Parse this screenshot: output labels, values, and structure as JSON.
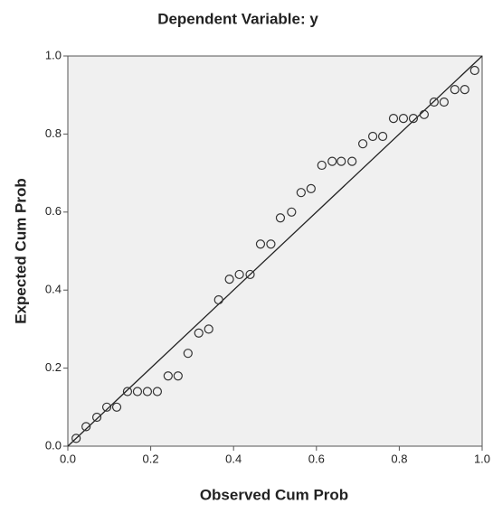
{
  "chart_data": {
    "type": "scatter",
    "title": "Dependent Variable: y",
    "x_label": "Observed Cum Prob",
    "y_label": "Expected Cum Prob",
    "x": [
      0.02,
      0.044,
      0.07,
      0.094,
      0.118,
      0.144,
      0.168,
      0.192,
      0.216,
      0.242,
      0.266,
      0.29,
      0.316,
      0.34,
      0.364,
      0.39,
      0.414,
      0.44,
      0.465,
      0.49,
      0.513,
      0.54,
      0.563,
      0.587,
      0.613,
      0.638,
      0.66,
      0.686,
      0.712,
      0.736,
      0.76,
      0.786,
      0.81,
      0.834,
      0.86,
      0.884,
      0.908,
      0.934,
      0.958,
      0.982
    ],
    "values": [
      0.02,
      0.05,
      0.074,
      0.1,
      0.1,
      0.14,
      0.14,
      0.14,
      0.14,
      0.18,
      0.18,
      0.238,
      0.29,
      0.3,
      0.375,
      0.428,
      0.44,
      0.44,
      0.518,
      0.518,
      0.585,
      0.6,
      0.65,
      0.66,
      0.72,
      0.73,
      0.73,
      0.73,
      0.775,
      0.794,
      0.794,
      0.84,
      0.84,
      0.84,
      0.85,
      0.882,
      0.882,
      0.914,
      0.914,
      0.963
    ],
    "marker_color": "#333333",
    "line_color": "#222222",
    "background": "#f0f0f0",
    "xlim": [
      0,
      1
    ],
    "ylim": [
      0,
      1
    ],
    "xticks": [
      {
        "value": 0,
        "label": "0.0"
      },
      0.2,
      0.4,
      0.6,
      0.8,
      {
        "value": 1,
        "label": "1.0"
      }
    ],
    "yticks": [
      {
        "value": 0,
        "label": "0.0"
      },
      0.2,
      0.4,
      0.6,
      0.8,
      {
        "value": 1,
        "label": "1.0"
      }
    ]
  }
}
